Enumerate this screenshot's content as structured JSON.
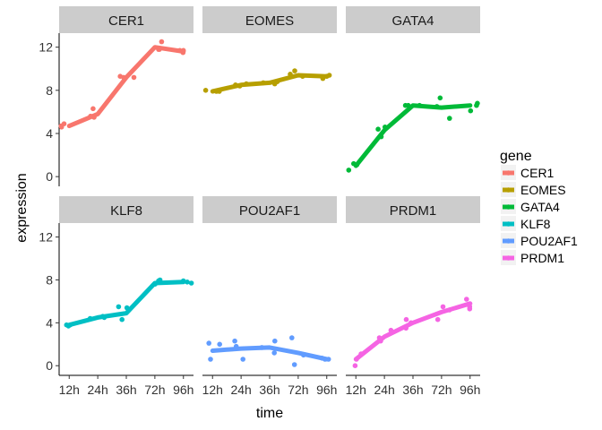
{
  "chart_data": {
    "type": "line",
    "xlabel": "time",
    "ylabel": "expression",
    "categories": [
      "12h",
      "24h",
      "36h",
      "72h",
      "96h"
    ],
    "yticks": [
      0,
      4,
      8,
      12
    ],
    "ylim": [
      -0.9,
      13.3
    ],
    "grid": false,
    "legend": {
      "title": "gene",
      "position": "right"
    },
    "facets": [
      {
        "name": "CER1",
        "color": "#F8766D",
        "line": [
          4.7,
          5.8,
          9.2,
          12.0,
          11.6
        ],
        "points": [
          [
            1,
            4.7
          ],
          [
            1,
            4.9
          ],
          [
            1,
            4.6
          ],
          [
            2,
            5.5
          ],
          [
            2,
            6.3
          ],
          [
            2,
            5.6
          ],
          [
            3,
            9.2
          ],
          [
            3,
            9.3
          ],
          [
            3,
            9.2
          ],
          [
            4,
            12.5
          ],
          [
            4,
            11.8
          ],
          [
            4,
            11.8
          ],
          [
            5,
            11.5
          ],
          [
            5,
            11.7
          ],
          [
            5,
            11.7
          ]
        ]
      },
      {
        "name": "EOMES",
        "color": "#B79F00",
        "line": [
          7.9,
          8.5,
          8.7,
          9.4,
          9.3
        ],
        "points": [
          [
            1,
            7.9
          ],
          [
            1,
            7.9
          ],
          [
            1,
            8.0
          ],
          [
            2,
            8.4
          ],
          [
            2,
            8.6
          ],
          [
            2,
            8.5
          ],
          [
            3,
            8.6
          ],
          [
            3,
            8.7
          ],
          [
            3,
            8.8
          ],
          [
            4,
            9.8
          ],
          [
            4,
            9.3
          ],
          [
            4,
            9.5
          ],
          [
            5,
            9.1
          ],
          [
            5,
            9.4
          ],
          [
            5,
            9.3
          ]
        ]
      },
      {
        "name": "GATA4",
        "color": "#00BA38",
        "line": [
          1.0,
          4.3,
          6.6,
          6.4,
          6.6
        ],
        "points": [
          [
            1,
            0.6
          ],
          [
            1,
            1.1
          ],
          [
            1,
            1.2
          ],
          [
            2,
            3.7
          ],
          [
            2,
            4.6
          ],
          [
            2,
            4.4
          ],
          [
            3,
            6.6
          ],
          [
            3,
            6.6
          ],
          [
            3,
            6.6
          ],
          [
            4,
            7.3
          ],
          [
            4,
            5.4
          ],
          [
            4,
            6.5
          ],
          [
            5,
            6.1
          ],
          [
            5,
            6.8
          ],
          [
            5,
            6.6
          ]
        ]
      },
      {
        "name": "KLF8",
        "color": "#00BFC4",
        "line": [
          3.8,
          4.5,
          4.9,
          7.7,
          7.8
        ],
        "points": [
          [
            1,
            3.8
          ],
          [
            1,
            3.7
          ],
          [
            1,
            3.8
          ],
          [
            2,
            4.5
          ],
          [
            2,
            4.4
          ],
          [
            2,
            4.6
          ],
          [
            3,
            5.5
          ],
          [
            3,
            5.4
          ],
          [
            3,
            4.3
          ],
          [
            4,
            7.6
          ],
          [
            4,
            8.0
          ],
          [
            4,
            7.9
          ],
          [
            5,
            7.7
          ],
          [
            5,
            7.9
          ],
          [
            5,
            7.8
          ]
        ]
      },
      {
        "name": "POU2AF1",
        "color": "#619CFF",
        "line": [
          1.4,
          1.6,
          1.7,
          1.2,
          0.6
        ],
        "points": [
          [
            1,
            0.6
          ],
          [
            1,
            2.1
          ],
          [
            1,
            2.0
          ],
          [
            2,
            0.6
          ],
          [
            2,
            2.3
          ],
          [
            2,
            1.8
          ],
          [
            3,
            2.3
          ],
          [
            3,
            1.2
          ],
          [
            3,
            1.7
          ],
          [
            4,
            2.6
          ],
          [
            4,
            0.1
          ],
          [
            4,
            1.0
          ],
          [
            5,
            0.7
          ],
          [
            5,
            0.6
          ],
          [
            5,
            0.6
          ]
        ]
      },
      {
        "name": "PRDM1",
        "color": "#F564E3",
        "line": [
          0.6,
          2.7,
          4.0,
          5.0,
          5.8
        ],
        "points": [
          [
            1,
            0.0
          ],
          [
            1,
            1.1
          ],
          [
            1,
            0.6
          ],
          [
            2,
            3.3
          ],
          [
            2,
            2.3
          ],
          [
            2,
            2.6
          ],
          [
            3,
            4.3
          ],
          [
            3,
            4.0
          ],
          [
            3,
            3.5
          ],
          [
            4,
            5.5
          ],
          [
            4,
            4.3
          ],
          [
            4,
            5.2
          ],
          [
            5,
            6.2
          ],
          [
            5,
            5.5
          ],
          [
            5,
            5.3
          ]
        ]
      }
    ]
  }
}
